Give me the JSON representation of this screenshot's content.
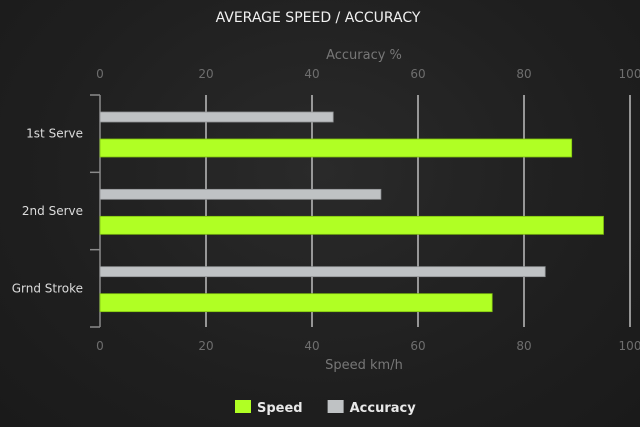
{
  "chart_data": {
    "type": "bar",
    "orientation": "horizontal",
    "title": "AVERAGE SPEED / ACCURACY",
    "categories": [
      "1st Serve",
      "2nd Serve",
      "Grnd Stroke"
    ],
    "series": [
      {
        "name": "Accuracy",
        "values": [
          44,
          53,
          84
        ],
        "color": "#bfc2c4",
        "axis": "top"
      },
      {
        "name": "Speed",
        "values": [
          89,
          95,
          74
        ],
        "color": "#b0ff24",
        "axis": "bottom"
      }
    ],
    "top_axis": {
      "label": "Accuracy %",
      "range": [
        0,
        100
      ],
      "ticks": [
        "0",
        "20",
        "40",
        "60",
        "80",
        "100"
      ]
    },
    "bottom_axis": {
      "label": "Speed km/h",
      "range": [
        0,
        100
      ],
      "ticks": [
        "0",
        "20",
        "40",
        "60",
        "80",
        "100"
      ]
    },
    "grid": true,
    "legend": {
      "placement": "bottom",
      "items": [
        {
          "label": "Speed",
          "color": "#b0ff24"
        },
        {
          "label": "Accuracy",
          "color": "#bfc2c4"
        }
      ]
    }
  }
}
